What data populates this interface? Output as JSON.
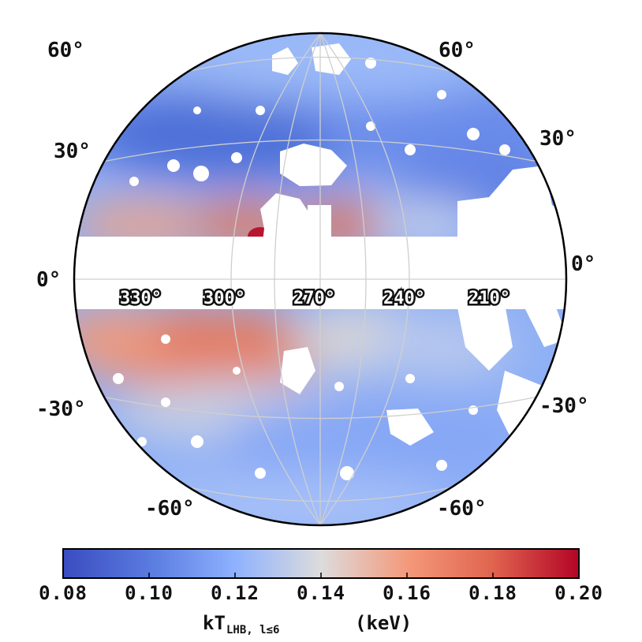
{
  "map": {
    "projection": "orthographic",
    "center_longitude": 270,
    "masked_band": "|b| < 5°",
    "latitude_labels_left": [
      "60°",
      "30°",
      "0°",
      "-30°",
      "-60°"
    ],
    "latitude_labels_right": [
      "60°",
      "30°",
      "0°",
      "-30°",
      "-60°"
    ],
    "longitude_labels": [
      "330°",
      "300°",
      "270°",
      "240°",
      "210°"
    ],
    "colormap": "coolwarm",
    "colors": {
      "cold": "#3b4cc0",
      "neutral": "#dddcdc",
      "warm": "#b40426",
      "mask": "#ffffff",
      "grid": "#cfcfcf"
    }
  },
  "colorbar": {
    "ticks": [
      "0.08",
      "0.10",
      "0.12",
      "0.14",
      "0.16",
      "0.18",
      "0.20"
    ],
    "range": [
      0.08,
      0.2
    ],
    "label_main": "kT",
    "label_sub": "LHB, l≤6",
    "label_unit": "(keV)"
  }
}
